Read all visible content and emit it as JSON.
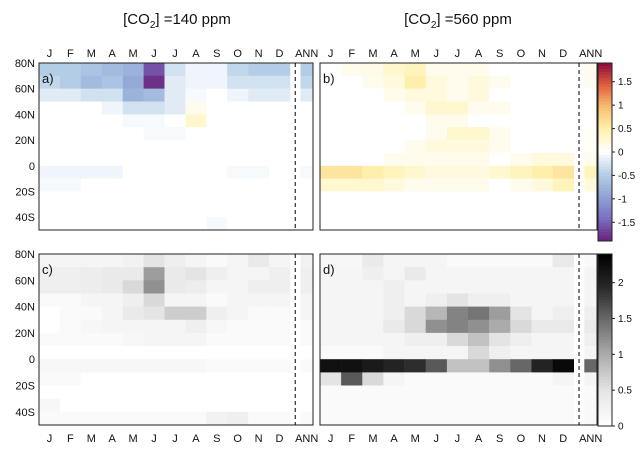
{
  "titles": {
    "left": "[CO₂] =140 ppm",
    "right": "[CO₂] =560 ppm"
  },
  "months": [
    "J",
    "F",
    "M",
    "A",
    "M",
    "J",
    "J",
    "A",
    "S",
    "O",
    "N",
    "D",
    "ANN"
  ],
  "latitudes": [
    "80N",
    "60N",
    "40N",
    "20N",
    "0",
    "20S",
    "40S"
  ],
  "chart_data": [
    {
      "type": "heatmap",
      "panel_label": "a)",
      "columns": [
        "J",
        "F",
        "M",
        "A",
        "M",
        "J",
        "J",
        "A",
        "S",
        "O",
        "N",
        "D",
        "ANN"
      ],
      "row_lat_center": [
        75,
        65,
        55,
        45,
        35,
        25,
        15,
        5,
        -5,
        -15,
        -25,
        -35,
        -45
      ],
      "values": [
        [
          -0.5,
          -0.5,
          -0.6,
          -0.7,
          -0.8,
          -1.6,
          -0.3,
          -0.1,
          -0.1,
          -0.4,
          -0.5,
          -0.5,
          -0.5
        ],
        [
          -0.4,
          -0.5,
          -0.7,
          -0.6,
          -0.9,
          -1.8,
          -0.2,
          -0.1,
          -0.1,
          -0.3,
          -0.3,
          -0.3,
          -0.4
        ],
        [
          -0.2,
          -0.2,
          -0.3,
          -0.3,
          -0.8,
          -0.7,
          -0.2,
          -0.05,
          0,
          -0.1,
          -0.2,
          -0.2,
          -0.2
        ],
        [
          0,
          0,
          0,
          -0.1,
          -0.3,
          -0.3,
          -0.2,
          0.1,
          0,
          0,
          0,
          0,
          0
        ],
        [
          0,
          0,
          0,
          0,
          -0.05,
          -0.05,
          0,
          0.3,
          0,
          0,
          0,
          0,
          0
        ],
        [
          0,
          0,
          0,
          0,
          0,
          -0.05,
          -0.05,
          0,
          0,
          0,
          0,
          0,
          0
        ],
        [
          0,
          0,
          0,
          0,
          0,
          0,
          0,
          0,
          0,
          0,
          0,
          0,
          0
        ],
        [
          0,
          0,
          0,
          0,
          0,
          0,
          0,
          0,
          0,
          0,
          0,
          0,
          0
        ],
        [
          -0.1,
          -0.1,
          -0.1,
          -0.1,
          0,
          0,
          0,
          0,
          0,
          -0.05,
          -0.05,
          0,
          -0.05
        ],
        [
          -0.05,
          -0.05,
          0,
          0,
          0,
          0,
          0,
          0,
          0,
          0,
          0,
          0,
          0
        ],
        [
          0,
          0,
          0,
          0,
          0,
          0,
          0,
          0,
          0,
          0,
          0,
          0,
          0
        ],
        [
          0,
          0,
          0,
          0,
          0,
          0,
          0,
          0,
          0,
          0,
          0,
          0,
          0
        ],
        [
          0,
          0,
          0,
          0,
          0,
          0,
          0,
          0,
          -0.05,
          0,
          0,
          0,
          0
        ]
      ]
    },
    {
      "type": "heatmap",
      "panel_label": "b)",
      "columns": [
        "J",
        "F",
        "M",
        "A",
        "M",
        "J",
        "J",
        "A",
        "S",
        "O",
        "N",
        "D",
        "ANN"
      ],
      "row_lat_center": [
        75,
        65,
        55,
        45,
        35,
        25,
        15,
        5,
        -5,
        -15,
        -25,
        -35,
        -45
      ],
      "values": [
        [
          0,
          0.1,
          0.15,
          0.3,
          0.4,
          0.1,
          0.1,
          0.1,
          0,
          0,
          0,
          0,
          0.1
        ],
        [
          0,
          0,
          0.1,
          0.2,
          0.5,
          0.2,
          0.1,
          0.2,
          0.1,
          0,
          0,
          0,
          0.1
        ],
        [
          0,
          0,
          0,
          0.1,
          0.2,
          0.2,
          0.1,
          0.2,
          0,
          0,
          0,
          0,
          0
        ],
        [
          0,
          0,
          0,
          0,
          0.1,
          0.3,
          0.3,
          0.1,
          0.1,
          0,
          0,
          0,
          0
        ],
        [
          0,
          0,
          0,
          0,
          0,
          0.1,
          0.1,
          0,
          0,
          0,
          0,
          0,
          0
        ],
        [
          0,
          0,
          0,
          0,
          0,
          0.1,
          0.3,
          0.3,
          0.1,
          0,
          0,
          0,
          0.05
        ],
        [
          0,
          0,
          0,
          0,
          0.1,
          0.2,
          0.2,
          0.2,
          0.1,
          0,
          0,
          0,
          0.05
        ],
        [
          0,
          0,
          0,
          0.1,
          0.1,
          0.1,
          0.1,
          0.1,
          0,
          0.1,
          0.2,
          0.2,
          0.1
        ],
        [
          0.6,
          0.6,
          0.5,
          0.4,
          0.3,
          0.2,
          0.2,
          0.2,
          0.3,
          0.4,
          0.5,
          0.6,
          0.4
        ],
        [
          0.3,
          0.3,
          0.3,
          0.2,
          0.1,
          0.1,
          0.1,
          0.1,
          0,
          0.1,
          0.2,
          0.4,
          0.2
        ],
        [
          0,
          0,
          0,
          0,
          0,
          0,
          0,
          0,
          0,
          0,
          0,
          0,
          0
        ],
        [
          0,
          0,
          0,
          0,
          0,
          0,
          0,
          0,
          0,
          0,
          0,
          0,
          0
        ],
        [
          0,
          0,
          0,
          0,
          0,
          0,
          0,
          0,
          0,
          0,
          0,
          0,
          0
        ]
      ]
    },
    {
      "type": "heatmap",
      "panel_label": "c)",
      "columns": [
        "J",
        "F",
        "M",
        "A",
        "M",
        "J",
        "J",
        "A",
        "S",
        "O",
        "N",
        "D",
        "ANN"
      ],
      "row_lat_center": [
        75,
        65,
        55,
        45,
        35,
        25,
        15,
        5,
        -5,
        -15,
        -25,
        -35,
        -45
      ],
      "values": [
        [
          0.2,
          0.2,
          0.2,
          0.2,
          0.25,
          0.5,
          0.3,
          0.2,
          0.1,
          0.2,
          0.4,
          0.2,
          0.25
        ],
        [
          0.3,
          0.3,
          0.35,
          0.4,
          0.4,
          1.1,
          0.4,
          0.5,
          0.3,
          0.2,
          0.2,
          0.3,
          0.3
        ],
        [
          0.3,
          0.3,
          0.35,
          0.4,
          0.6,
          1.2,
          0.4,
          0.35,
          0.2,
          0.2,
          0.3,
          0.3,
          0.3
        ],
        [
          0.1,
          0.1,
          0.2,
          0.2,
          0.3,
          0.6,
          0.2,
          0.2,
          0.1,
          0.2,
          0.2,
          0.2,
          0.2
        ],
        [
          0,
          0.1,
          0.1,
          0.2,
          0.4,
          0.5,
          0.7,
          0.7,
          0.3,
          0.2,
          0.1,
          0.1,
          0.2
        ],
        [
          0,
          0.1,
          0.15,
          0.2,
          0.2,
          0.2,
          0.2,
          0.3,
          0.15,
          0.1,
          0.1,
          0.1,
          0.1
        ],
        [
          0.1,
          0.1,
          0.1,
          0.1,
          0.15,
          0.2,
          0.2,
          0.2,
          0.1,
          0.1,
          0.1,
          0.1,
          0.1
        ],
        [
          0,
          0,
          0,
          0,
          0,
          0,
          0,
          0,
          0,
          0,
          0,
          0,
          0
        ],
        [
          0.15,
          0.15,
          0.15,
          0.15,
          0.15,
          0.15,
          0.15,
          0.15,
          0.1,
          0.1,
          0.1,
          0.1,
          0.1
        ],
        [
          0.1,
          0.1,
          0,
          0,
          0,
          0,
          0,
          0,
          0,
          0,
          0,
          0,
          0
        ],
        [
          0,
          0,
          0,
          0,
          0,
          0,
          0,
          0,
          0,
          0,
          0,
          0,
          0
        ],
        [
          0.15,
          0,
          0,
          0,
          0,
          0,
          0,
          0,
          0,
          0,
          0,
          0,
          0
        ],
        [
          0.1,
          0.1,
          0.1,
          0.1,
          0.1,
          0.1,
          0.1,
          0.1,
          0.25,
          0.3,
          0.1,
          0.1,
          0.1
        ]
      ]
    },
    {
      "type": "heatmap",
      "panel_label": "d)",
      "columns": [
        "J",
        "F",
        "M",
        "A",
        "M",
        "J",
        "J",
        "A",
        "S",
        "O",
        "N",
        "D",
        "ANN"
      ],
      "row_lat_center": [
        75,
        65,
        55,
        45,
        35,
        25,
        15,
        5,
        -5,
        -15,
        -25,
        -35,
        -45
      ],
      "values": [
        [
          0.15,
          0.15,
          0.4,
          0.2,
          0.2,
          0.2,
          0.1,
          0.1,
          0.1,
          0.1,
          0.1,
          0.4,
          0.1
        ],
        [
          0.2,
          0.2,
          0.3,
          0.2,
          0.4,
          0.2,
          0.2,
          0.2,
          0.2,
          0.2,
          0.2,
          0.2,
          0.2
        ],
        [
          0.2,
          0.2,
          0.2,
          0.3,
          0.2,
          0.2,
          0.2,
          0.2,
          0.2,
          0.2,
          0.2,
          0.2,
          0.2
        ],
        [
          0.2,
          0.2,
          0.2,
          0.3,
          0.2,
          0.3,
          0.5,
          0.3,
          0.3,
          0.2,
          0.2,
          0.2,
          0.2
        ],
        [
          0.2,
          0.2,
          0.2,
          0.3,
          0.6,
          0.9,
          1.3,
          1.4,
          1.1,
          0.5,
          0.2,
          0.3,
          0.3
        ],
        [
          0.2,
          0.2,
          0.2,
          0.4,
          0.6,
          1.2,
          1.3,
          1.2,
          1.0,
          0.6,
          0.4,
          0.4,
          0.4
        ],
        [
          0.2,
          0.2,
          0.2,
          0.2,
          0.3,
          0.3,
          0.6,
          0.8,
          0.5,
          0.3,
          0.2,
          0.2,
          0.3
        ],
        [
          0.1,
          0.1,
          0.1,
          0.2,
          0.2,
          0.2,
          0.2,
          0.6,
          0.3,
          0.2,
          0.2,
          0.2,
          0.2
        ],
        [
          2.2,
          2.2,
          2.1,
          2.0,
          1.9,
          1.6,
          0.8,
          0.8,
          1.2,
          1.5,
          2.0,
          2.3,
          1.5
        ],
        [
          0.5,
          1.6,
          0.6,
          0.2,
          0.1,
          0.1,
          0.1,
          0.1,
          0.1,
          0.1,
          0.1,
          0.2,
          0.2
        ],
        [
          0.1,
          0.1,
          0.1,
          0.1,
          0.1,
          0.1,
          0.1,
          0.1,
          0.1,
          0.1,
          0.1,
          0.1,
          0.1
        ],
        [
          0.1,
          0.1,
          0.1,
          0.1,
          0.1,
          0.1,
          0.1,
          0.1,
          0.1,
          0.1,
          0.1,
          0.1,
          0.1
        ],
        [
          0.1,
          0.1,
          0.1,
          0.1,
          0.1,
          0.1,
          0.1,
          0.1,
          0.1,
          0.1,
          0.1,
          0.1,
          0.1
        ]
      ]
    }
  ],
  "colorbars": [
    {
      "name": "diverging",
      "range": [
        -1.9,
        1.9
      ],
      "ticks": [
        "1.5",
        "1",
        "0.5",
        "0",
        "-0.5",
        "-1",
        "-1.5"
      ],
      "tick_values": [
        1.5,
        1,
        0.5,
        0,
        -0.5,
        -1,
        -1.5
      ],
      "colors_neg": [
        "#ffffff",
        "#b5cfe8",
        "#8fa4d4",
        "#7a6fc2",
        "#6a1f7a"
      ],
      "colors_pos": [
        "#ffffff",
        "#fff2b0",
        "#f9c070",
        "#e15f3f",
        "#8a0a3a"
      ]
    },
    {
      "name": "grey",
      "range": [
        0,
        2.4
      ],
      "ticks": [
        "2",
        "1.5",
        "1",
        "0.5",
        "0"
      ],
      "tick_values": [
        2,
        1.5,
        1,
        0.5,
        0
      ],
      "colors": [
        "#ffffff",
        "#e6e6e6",
        "#b0b0b0",
        "#707070",
        "#2a2a2a",
        "#000000"
      ]
    }
  ]
}
